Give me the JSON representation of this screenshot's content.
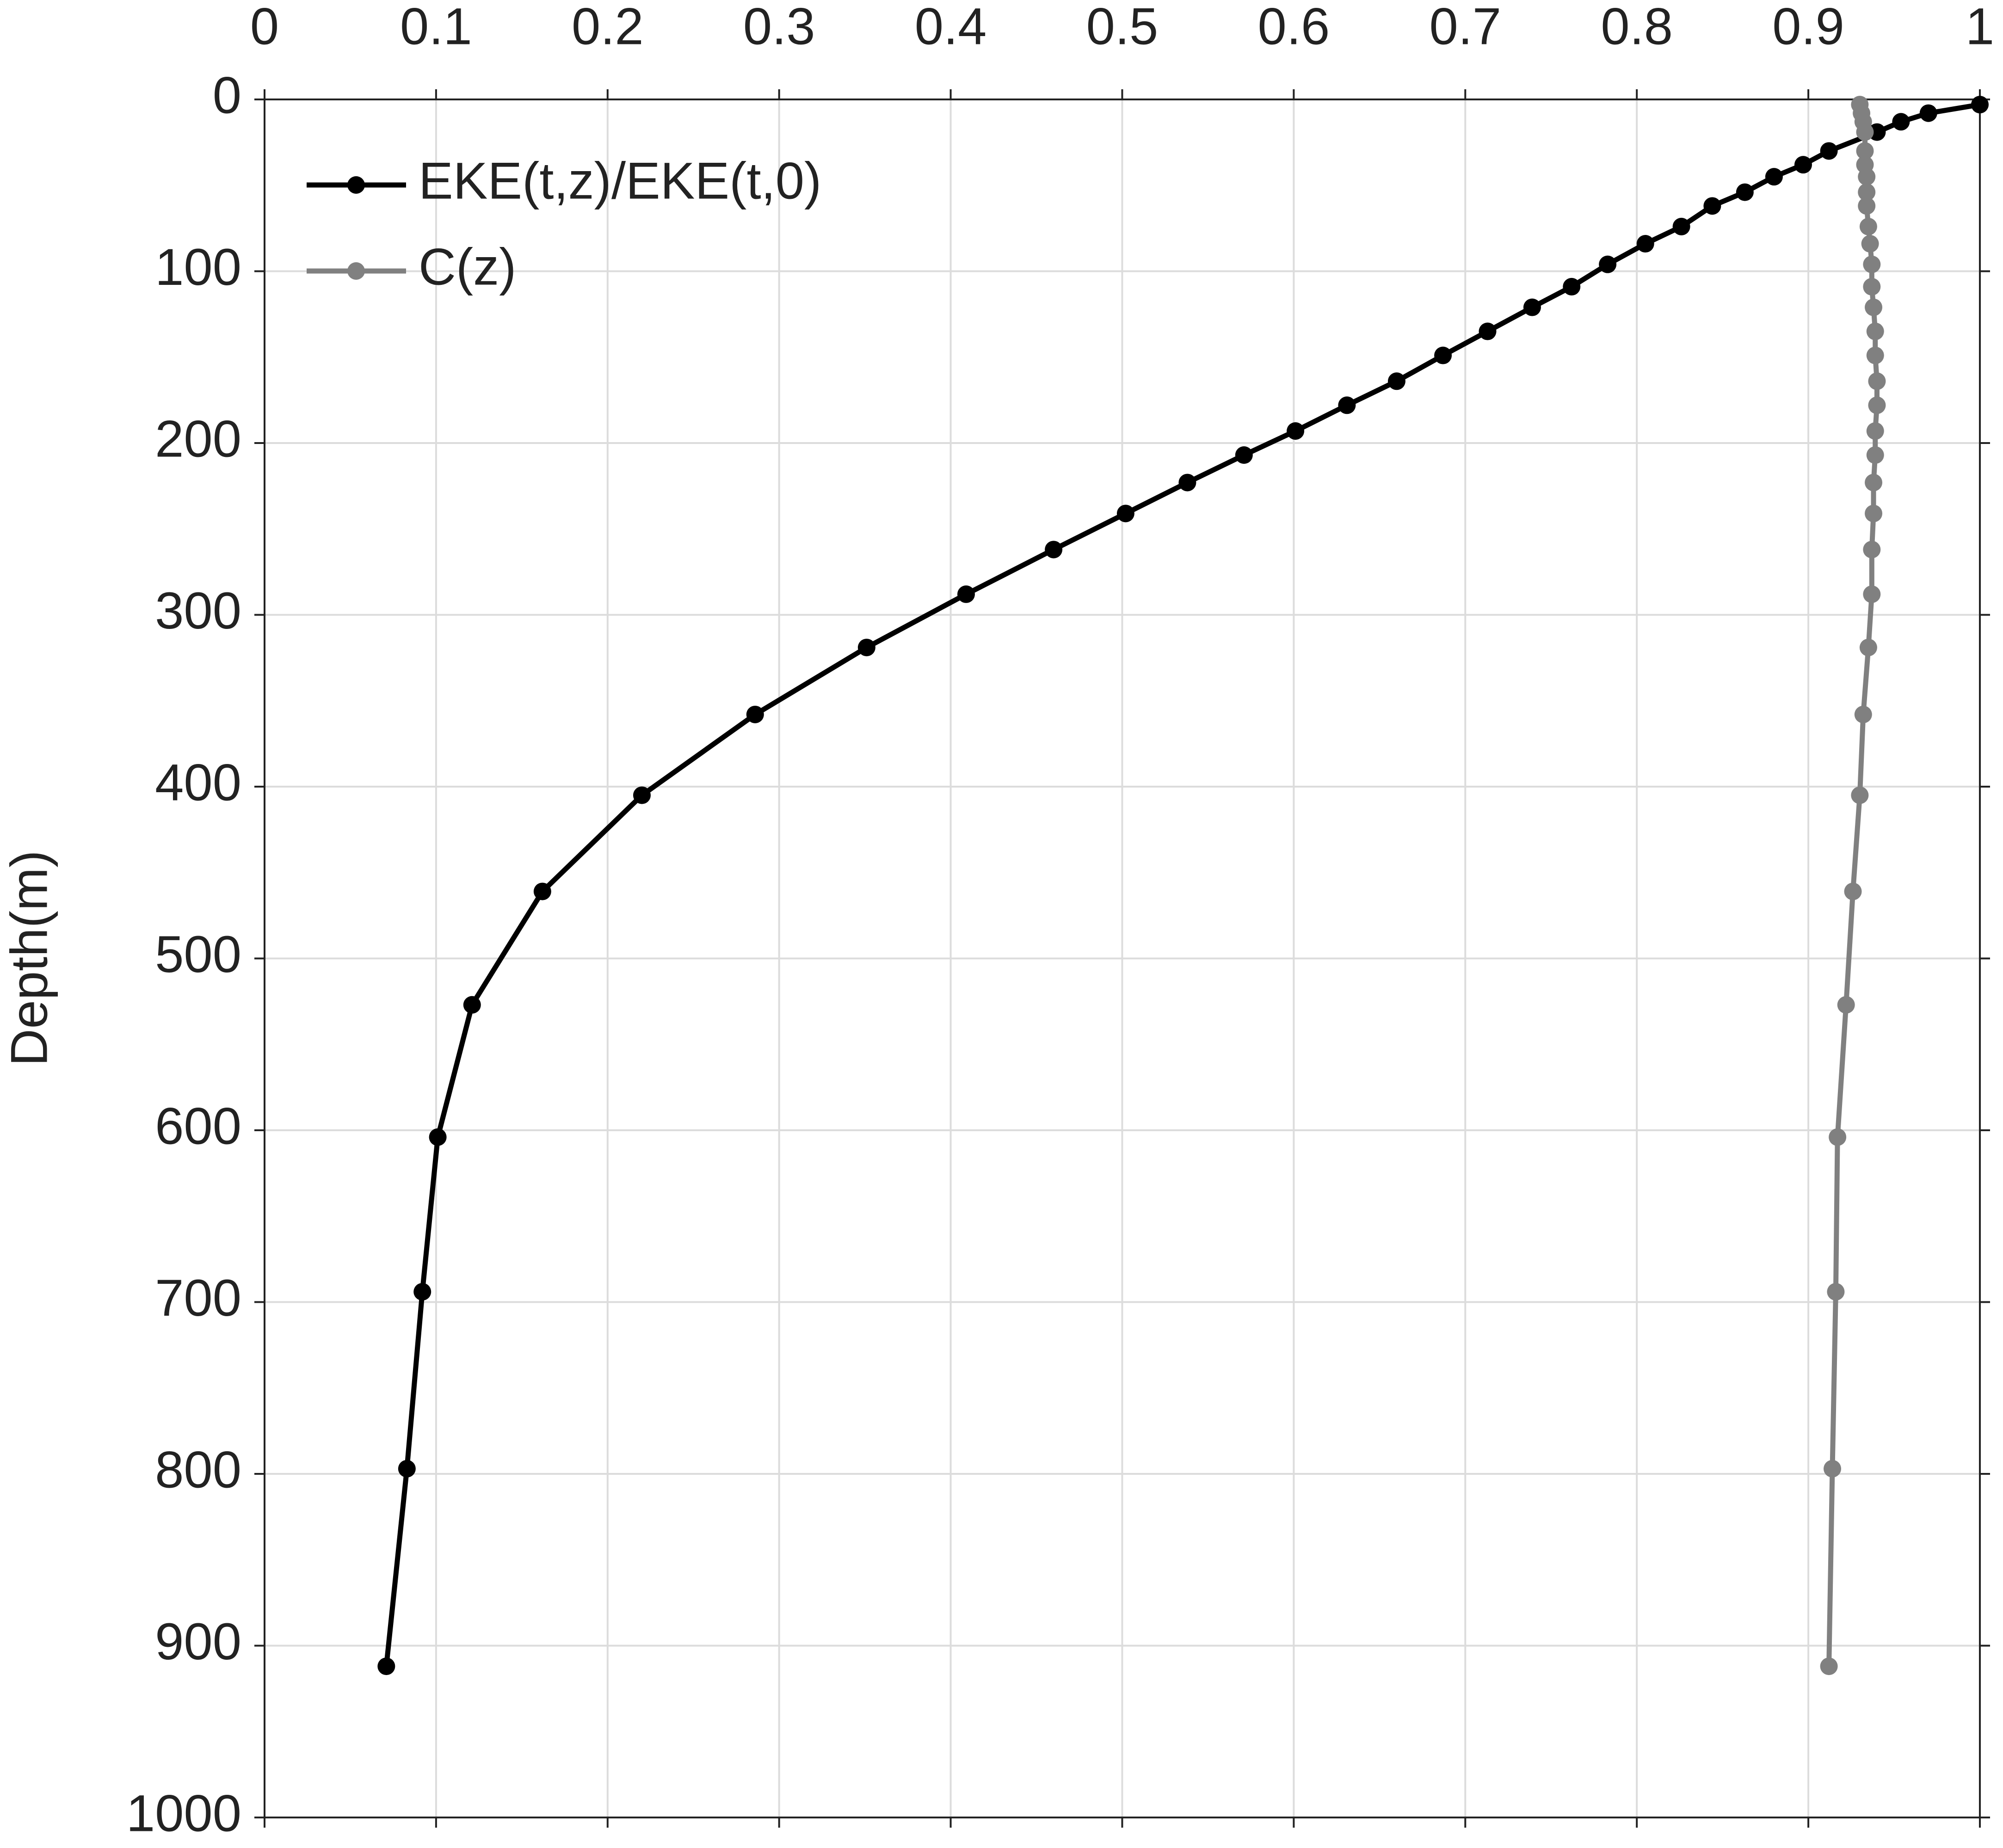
{
  "chart_data": {
    "type": "line",
    "ylabel": "Depth(m)",
    "xlim": [
      0,
      1
    ],
    "xticks": [
      0,
      0.1,
      0.2,
      0.3,
      0.4,
      0.5,
      0.6,
      0.7,
      0.8,
      0.9,
      1
    ],
    "ylim": [
      0,
      1000
    ],
    "yticks": [
      0,
      100,
      200,
      300,
      400,
      500,
      600,
      700,
      800,
      900,
      1000
    ],
    "y_reversed": true,
    "x_axis_position": "top",
    "grid": true,
    "legend": "upper-left",
    "series": [
      {
        "name": "EKE(t,z)/EKE(t,0)",
        "color": "#000000",
        "x": [
          1.0,
          0.97,
          0.954,
          0.94,
          0.912,
          0.897,
          0.88,
          0.863,
          0.844,
          0.826,
          0.805,
          0.783,
          0.762,
          0.739,
          0.713,
          0.687,
          0.66,
          0.631,
          0.601,
          0.571,
          0.538,
          0.502,
          0.46,
          0.409,
          0.351,
          0.286,
          0.22,
          0.162,
          0.121,
          0.101,
          0.092,
          0.083,
          0.071
        ],
        "y": [
          3,
          8,
          13,
          19,
          30,
          38,
          45,
          54,
          62,
          74,
          84,
          96,
          109,
          121,
          135,
          149,
          164,
          178,
          193,
          207,
          223,
          241,
          262,
          288,
          319,
          358,
          405,
          461,
          527,
          604,
          694,
          797,
          912
        ]
      },
      {
        "name": "C(z)",
        "color": "#808080",
        "x": [
          0.93,
          0.931,
          0.932,
          0.933,
          0.933,
          0.933,
          0.934,
          0.934,
          0.934,
          0.935,
          0.936,
          0.937,
          0.937,
          0.938,
          0.939,
          0.939,
          0.94,
          0.94,
          0.939,
          0.939,
          0.938,
          0.938,
          0.937,
          0.937,
          0.935,
          0.932,
          0.93,
          0.926,
          0.922,
          0.917,
          0.916,
          0.914,
          0.912
        ],
        "y": [
          3,
          8,
          13,
          19,
          30,
          38,
          45,
          54,
          62,
          74,
          84,
          96,
          109,
          121,
          135,
          149,
          164,
          178,
          193,
          207,
          223,
          241,
          262,
          288,
          319,
          358,
          405,
          461,
          527,
          604,
          694,
          797,
          912
        ]
      }
    ]
  }
}
